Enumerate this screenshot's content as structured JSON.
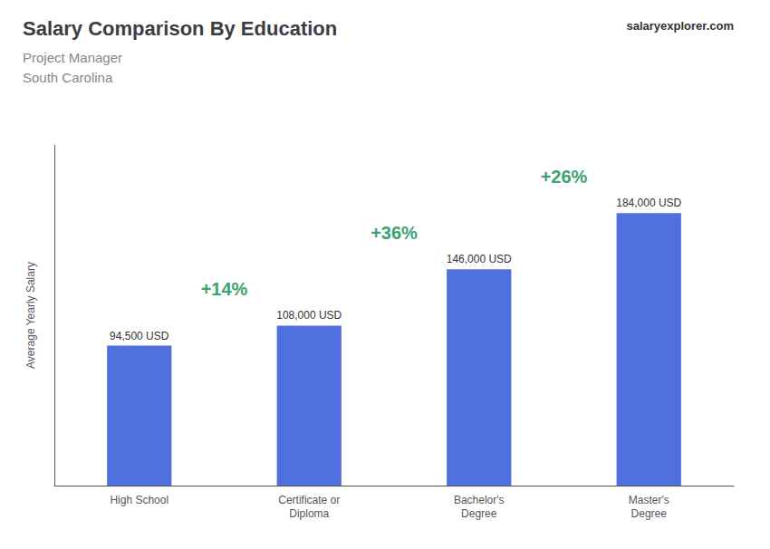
{
  "chart_data": {
    "type": "bar",
    "title": "Salary Comparison By Education",
    "subtitle": [
      "Project Manager",
      "South Carolina"
    ],
    "brand": "salaryexplorer.com",
    "categories": [
      "High School",
      "Certificate or\nDiploma",
      "Bachelor's\nDegree",
      "Master's\nDegree"
    ],
    "values": [
      94500,
      108000,
      146000,
      184000
    ],
    "value_labels": [
      "94,500 USD",
      "108,000 USD",
      "146,000 USD",
      "184,000 USD"
    ],
    "data_labels": true,
    "annotations": [
      "+14%",
      "+36%",
      "+26%"
    ],
    "ylabel": "Average Yearly Salary",
    "ylim": [
      0,
      230000
    ],
    "tick_labels": "x",
    "grid": false
  }
}
